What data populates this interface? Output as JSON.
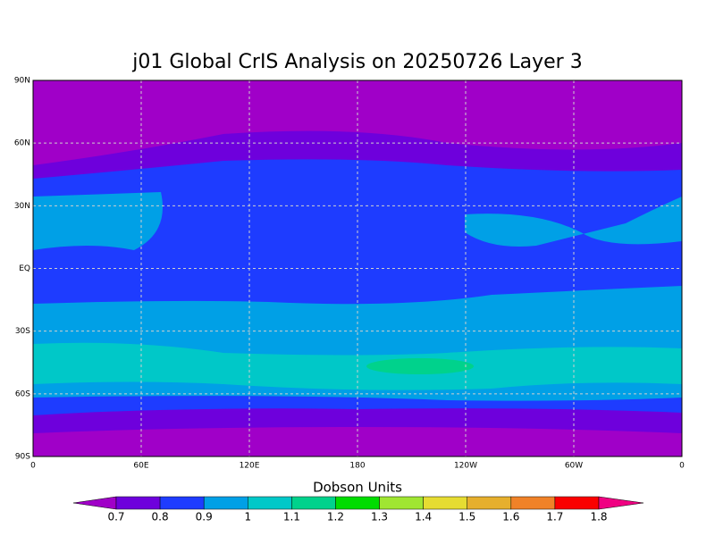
{
  "title": "j01 Global CrIS Analysis on 20250726 Layer 3",
  "lat_labels": [
    "90N",
    "60N",
    "30N",
    "EQ",
    "30S",
    "60S",
    "90S"
  ],
  "lon_labels": [
    "0",
    "60E",
    "120E",
    "180",
    "120W",
    "60W",
    "0"
  ],
  "colorbar": {
    "label": "Dobson Units",
    "levels": [
      0.7,
      0.8,
      0.9,
      1,
      1.1,
      1.2,
      1.3,
      1.4,
      1.5,
      1.6,
      1.7,
      1.8
    ],
    "colors": [
      "#a000c8",
      "#6e00dc",
      "#1e3cff",
      "#00a0e6",
      "#00c8c8",
      "#00d28c",
      "#00dc00",
      "#a0e632",
      "#e6dc32",
      "#e6af2d",
      "#f08228",
      "#fa0000",
      "#f00082"
    ]
  }
}
